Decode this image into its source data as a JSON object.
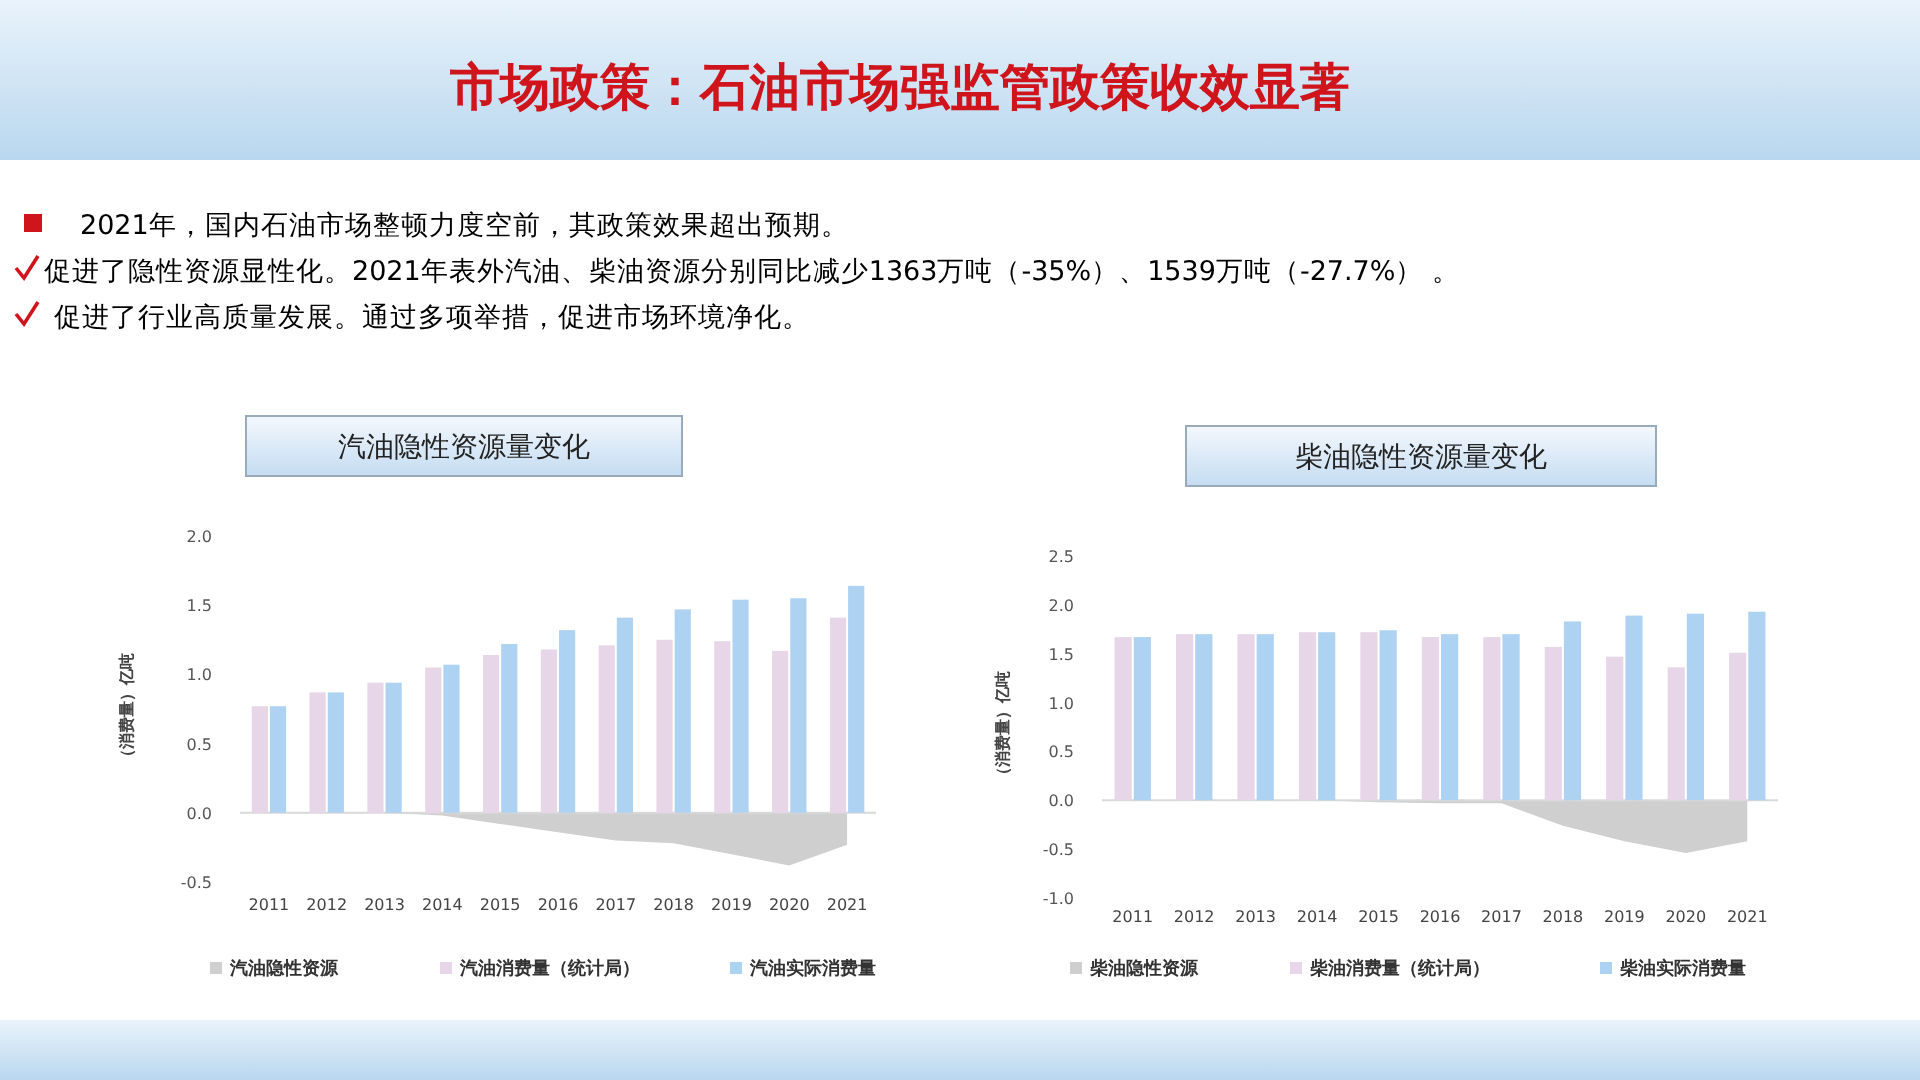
{
  "chart_data": [
    {
      "type": "other",
      "title": "市场政策：石油市场强监管政策收效显著",
      "annotations": [
        "2021年，国内石油市场整顿力度空前，其政策效果超出预期。",
        "促进了隐性资源显性化。2021年表外汽油、柴油资源分别同比减少1363万吨（-35%）、1539万吨（-27.7%） 。",
        "促进了行业高质量发展。通过多项举措，促进市场环境净化。"
      ]
    },
    {
      "type": "bar",
      "title": "汽油隐性资源量变化",
      "ylabel": "（消费量）亿吨",
      "categories": [
        "2011",
        "2012",
        "2013",
        "2014",
        "2015",
        "2016",
        "2017",
        "2018",
        "2019",
        "2020",
        "2021"
      ],
      "series": [
        {
          "name": "汽油隐性资源",
          "type": "area",
          "color": "#cfcfcf",
          "values": [
            0,
            0,
            0,
            -0.02,
            -0.08,
            -0.14,
            -0.2,
            -0.22,
            -0.3,
            -0.38,
            -0.23
          ]
        },
        {
          "name": "汽油消费量（统计局）",
          "color": "#e6d6e8",
          "values": [
            0.77,
            0.87,
            0.94,
            1.05,
            1.14,
            1.18,
            1.21,
            1.25,
            1.24,
            1.17,
            1.41
          ]
        },
        {
          "name": "汽油实际消费量",
          "color": "#aed2f2",
          "values": [
            0.77,
            0.87,
            0.94,
            1.07,
            1.22,
            1.32,
            1.41,
            1.47,
            1.54,
            1.55,
            1.64
          ]
        }
      ],
      "ylim": [
        -0.5,
        2.0
      ],
      "yticks": [
        {
          "value": -0.5,
          "label": "-0.5"
        },
        {
          "value": 0,
          "label": "0.0"
        },
        {
          "value": 0.5,
          "label": "0.5"
        },
        {
          "value": 1,
          "label": "1.0"
        },
        {
          "value": 1.5,
          "label": "1.5"
        },
        {
          "value": 2,
          "label": "2.0"
        }
      ],
      "legend": "bottom"
    },
    {
      "type": "bar",
      "title": "柴油隐性资源量变化",
      "ylabel": "（消费量）亿吨",
      "categories": [
        "2011",
        "2012",
        "2013",
        "2014",
        "2015",
        "2016",
        "2017",
        "2018",
        "2019",
        "2020",
        "2021"
      ],
      "series": [
        {
          "name": "柴油隐性资源",
          "type": "area",
          "color": "#cfcfcf",
          "values": [
            0,
            0,
            0,
            0,
            -0.02,
            -0.03,
            -0.03,
            -0.26,
            -0.42,
            -0.54,
            -0.42
          ]
        },
        {
          "name": "柴油消费量（统计局）",
          "color": "#e6d6e8",
          "values": [
            1.67,
            1.7,
            1.7,
            1.72,
            1.72,
            1.67,
            1.67,
            1.57,
            1.47,
            1.36,
            1.51
          ]
        },
        {
          "name": "柴油实际消费量",
          "color": "#aed2f2",
          "values": [
            1.67,
            1.7,
            1.7,
            1.72,
            1.74,
            1.7,
            1.7,
            1.83,
            1.89,
            1.91,
            1.93
          ]
        }
      ],
      "ylim": [
        -1.0,
        2.5
      ],
      "yticks": [
        {
          "value": -1,
          "label": "-1.0"
        },
        {
          "value": -0.5,
          "label": "-0.5"
        },
        {
          "value": 0,
          "label": "0.0"
        },
        {
          "value": 0.5,
          "label": "0.5"
        },
        {
          "value": 1,
          "label": "1.0"
        },
        {
          "value": 1.5,
          "label": "1.5"
        },
        {
          "value": 2,
          "label": "2.0"
        },
        {
          "value": 2.5,
          "label": "2.5"
        }
      ],
      "legend": "bottom"
    }
  ]
}
